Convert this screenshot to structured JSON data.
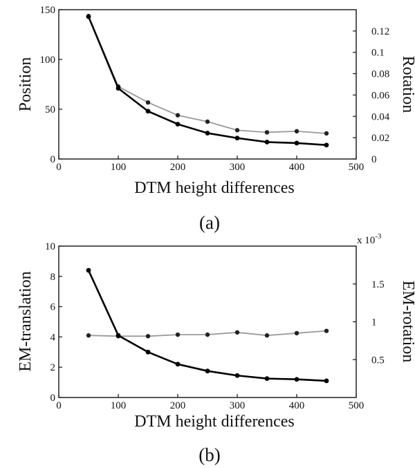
{
  "chart_data": [
    {
      "type": "line",
      "panel": "a",
      "caption": "(a)",
      "xlabel": "DTM height differences",
      "ylabel_left": "Position",
      "ylabel_right": "Rotation",
      "xlim": [
        0,
        500
      ],
      "ylim_left": [
        0,
        150
      ],
      "ylim_right": [
        0,
        0.14
      ],
      "x_ticks": [
        "0",
        "100",
        "200",
        "300",
        "400",
        "500"
      ],
      "y_left_ticks": [
        "0",
        "50",
        "100",
        "150"
      ],
      "y_right_ticks": [
        "0",
        "0.02",
        "0.04",
        "0.06",
        "0.08",
        "0.1",
        "0.12"
      ],
      "grid": false,
      "x": [
        50,
        100,
        150,
        200,
        250,
        300,
        350,
        400,
        450
      ],
      "series": [
        {
          "axis": "left",
          "color": "#000000",
          "values": [
            143,
            71,
            48,
            35,
            26,
            21,
            17,
            16,
            14
          ]
        },
        {
          "axis": "right",
          "color": "#999999",
          "values": [
            0.134,
            0.068,
            0.053,
            0.041,
            0.035,
            0.027,
            0.025,
            0.026,
            0.024
          ]
        }
      ]
    },
    {
      "type": "line",
      "panel": "b",
      "caption": "(b)",
      "xlabel": "DTM height differences",
      "ylabel_left": "EM-translation",
      "ylabel_right": "EM-rotation",
      "right_axis_multiplier": "x 10",
      "right_axis_exponent": "-3",
      "xlim": [
        0,
        500
      ],
      "ylim_left": [
        0,
        10
      ],
      "ylim_right": [
        0,
        2
      ],
      "x_ticks": [
        "0",
        "100",
        "200",
        "300",
        "400",
        "500"
      ],
      "y_left_ticks": [
        "0",
        "2",
        "4",
        "6",
        "8",
        "10"
      ],
      "y_right_ticks": [
        "0.5",
        "1",
        "1.5"
      ],
      "grid": false,
      "x": [
        50,
        100,
        150,
        200,
        250,
        300,
        350,
        400,
        450
      ],
      "series": [
        {
          "axis": "left",
          "color": "#000000",
          "values": [
            8.4,
            4.1,
            3.0,
            2.2,
            1.75,
            1.45,
            1.25,
            1.2,
            1.1
          ]
        },
        {
          "axis": "right",
          "color": "#999999",
          "values": [
            0.82,
            0.81,
            0.81,
            0.83,
            0.83,
            0.86,
            0.82,
            0.85,
            0.88
          ]
        }
      ]
    }
  ]
}
